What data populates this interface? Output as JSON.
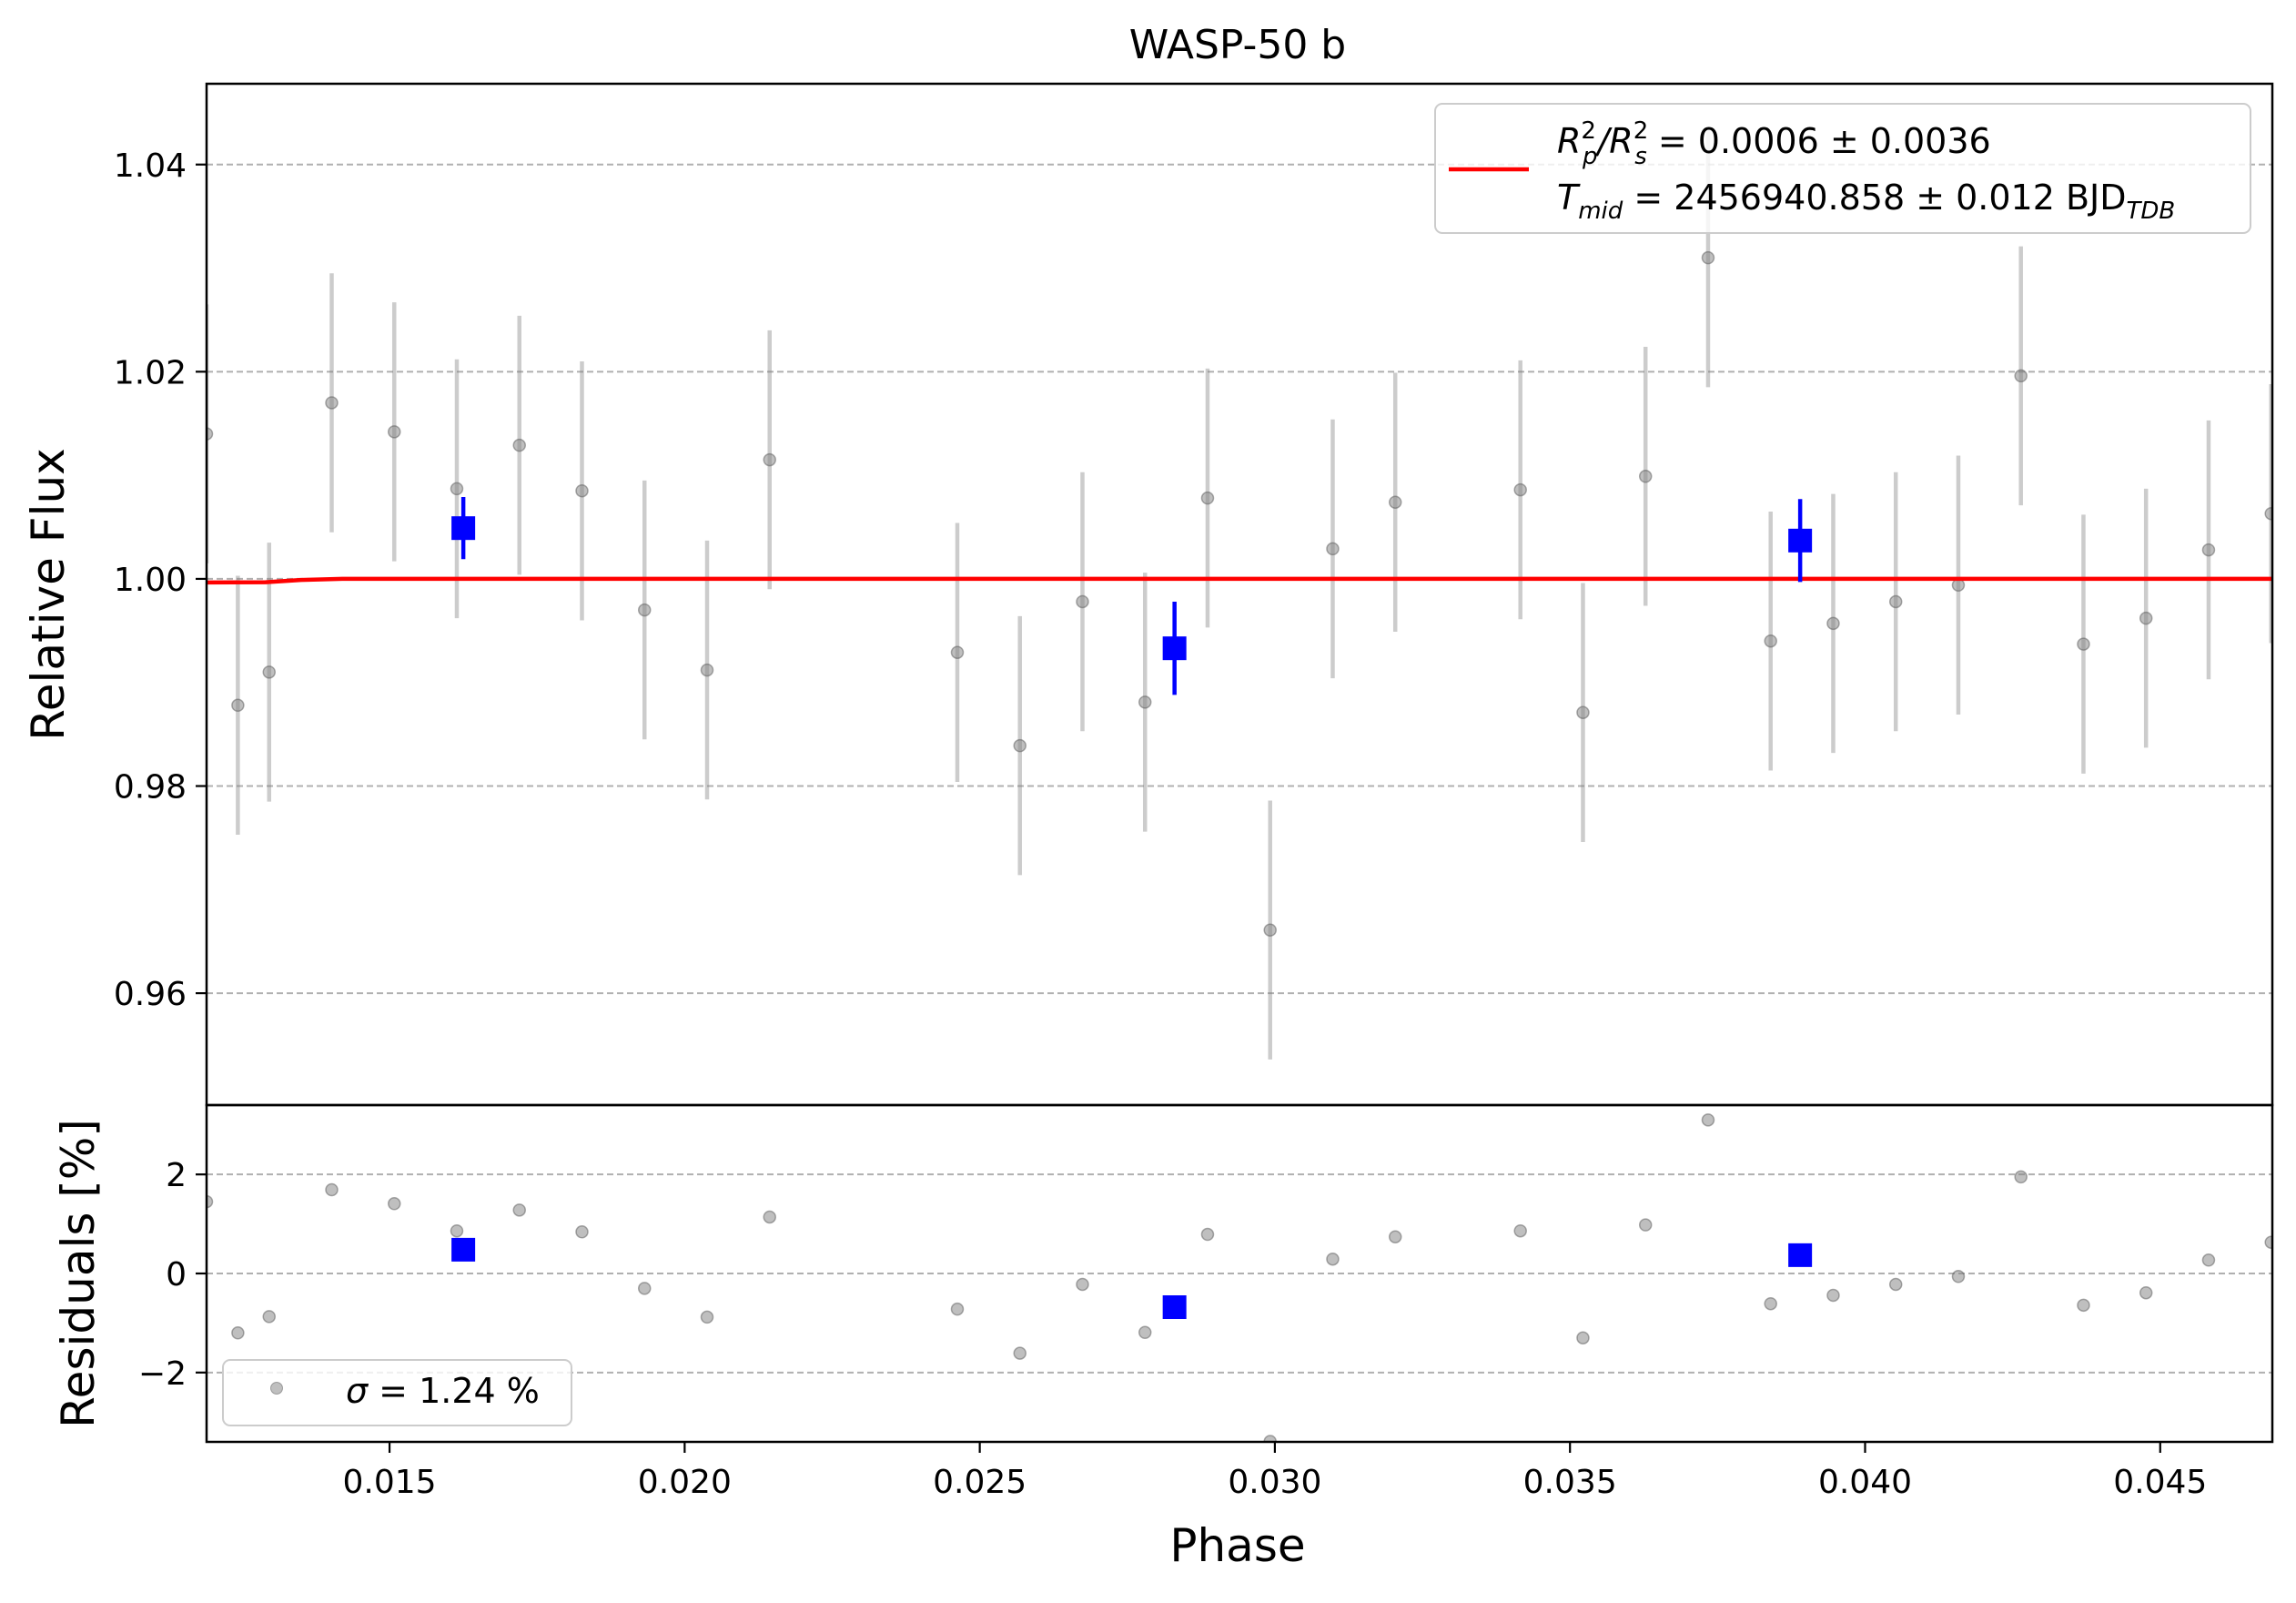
{
  "chart_data": {
    "type": "scatter",
    "title": "WASP-50 b",
    "xlabel": "Phase",
    "xlim": [
      0.0119,
      0.0469
    ],
    "x_ticks": [
      0.015,
      0.02,
      0.025,
      0.03,
      0.035,
      0.04,
      0.045
    ],
    "x_tick_labels": [
      "0.015",
      "0.020",
      "0.025",
      "0.030",
      "0.035",
      "0.040",
      "0.045"
    ],
    "top_panel": {
      "ylabel": "Relative Flux",
      "ylim": [
        0.9492,
        1.0478
      ],
      "y_ticks": [
        0.96,
        0.98,
        1.0,
        1.02,
        1.04
      ],
      "y_tick_labels": [
        "0.96",
        "0.98",
        "1.00",
        "1.02",
        "1.04"
      ],
      "grid": "horizontal dashed",
      "data": {
        "x": [
          0.0119,
          0.01243,
          0.01296,
          0.01402,
          0.01508,
          0.01614,
          0.0172,
          0.01826,
          0.01932,
          0.02038,
          0.02144,
          0.02462,
          0.02568,
          0.02674,
          0.0278,
          0.02886,
          0.02992,
          0.03098,
          0.03204,
          0.03416,
          0.03522,
          0.03628,
          0.03734,
          0.0384,
          0.03946,
          0.04052,
          0.04158,
          0.04264,
          0.0437,
          0.04476,
          0.04582,
          0.04688
        ],
        "y": [
          1.014,
          0.9878,
          0.991,
          1.017,
          1.0142,
          1.0087,
          1.0129,
          1.0085,
          0.997,
          0.9912,
          1.0115,
          0.9929,
          0.9839,
          0.9978,
          0.9881,
          1.0078,
          0.9661,
          1.0029,
          1.0074,
          1.0086,
          0.9871,
          1.0099,
          1.031,
          0.994,
          0.9957,
          0.9978,
          0.9994,
          1.0196,
          0.9937,
          0.9962,
          1.0028,
          1.0063
        ],
        "yerr": [
          0.0125,
          0.0125,
          0.0125,
          0.0125,
          0.0125,
          0.0125,
          0.0125,
          0.0125,
          0.0125,
          0.0125,
          0.0125,
          0.0125,
          0.0125,
          0.0125,
          0.0125,
          0.0125,
          0.0125,
          0.0125,
          0.0125,
          0.0125,
          0.0125,
          0.0125,
          0.0125,
          0.0125,
          0.0125,
          0.0125,
          0.0125,
          0.0125,
          0.0125,
          0.0125,
          0.0125,
          0.0125
        ],
        "color": "#7f7f7f"
      },
      "binned": {
        "x": [
          0.01625,
          0.0283,
          0.0389
        ],
        "y": [
          1.0049,
          0.9933,
          1.0037
        ],
        "yerr": [
          0.003,
          0.0045,
          0.004
        ],
        "color": "#0000ff"
      },
      "model": {
        "x": [
          0.0119,
          0.0129,
          0.0135,
          0.0142,
          0.0469
        ],
        "y": [
          0.99965,
          0.99968,
          0.9999,
          1.0,
          1.0
        ],
        "color": "#ff0000"
      },
      "legend": {
        "position": "top-right",
        "line1": {
          "pre": "R",
          "sup1": "2",
          "sub1": "p",
          "mid": "/R",
          "sup2": "2",
          "sub2": "s",
          "post": " = 0.0006 ± 0.0036"
        },
        "line2": {
          "pre": "T",
          "sub": "mid",
          "mid": " = 2456940.858 ± 0.012 BJD",
          "sub2": "TDB"
        }
      }
    },
    "bottom_panel": {
      "ylabel": "Residuals [%]",
      "ylim": [
        -3.4,
        3.4
      ],
      "y_ticks": [
        -2,
        0,
        2
      ],
      "y_tick_labels": [
        "−2",
        "0",
        "2"
      ],
      "grid": "horizontal dashed",
      "data": {
        "x": [
          0.0119,
          0.01243,
          0.01296,
          0.01402,
          0.01508,
          0.01614,
          0.0172,
          0.01826,
          0.01932,
          0.02038,
          0.02144,
          0.02462,
          0.02568,
          0.02674,
          0.0278,
          0.02886,
          0.02992,
          0.03098,
          0.03204,
          0.03416,
          0.03522,
          0.03628,
          0.03734,
          0.0384,
          0.03946,
          0.04052,
          0.04158,
          0.04264,
          0.0437,
          0.04476,
          0.04582,
          0.04688
        ],
        "y": [
          1.45,
          -1.2,
          -0.87,
          1.69,
          1.41,
          0.86,
          1.28,
          0.84,
          -0.3,
          -0.88,
          1.14,
          -0.72,
          -1.61,
          -0.22,
          -1.19,
          0.79,
          -3.39,
          0.29,
          0.74,
          0.86,
          -1.3,
          0.98,
          3.1,
          -0.61,
          -0.44,
          -0.22,
          -0.06,
          1.95,
          -0.64,
          -0.39,
          0.27,
          0.63
        ],
        "color": "#7f7f7f"
      },
      "binned": {
        "x": [
          0.01625,
          0.0283,
          0.0389
        ],
        "y": [
          0.48,
          -0.68,
          0.37
        ],
        "color": "#0000ff"
      },
      "legend": {
        "position": "bottom-left",
        "sym": "σ",
        "text": " = 1.24 %"
      }
    }
  }
}
